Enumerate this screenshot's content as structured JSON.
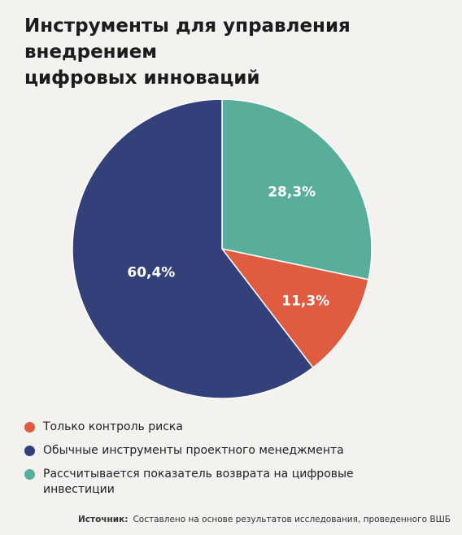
{
  "chart_data": {
    "type": "pie",
    "title_lines": [
      "Инструменты для управления внедрением",
      "цифровых инноваций"
    ],
    "slices": [
      {
        "label": "Рассчитывается показатель возврата на цифровые инвестиции",
        "value": 28.3,
        "display": "28,3%",
        "color": "#58ae9b"
      },
      {
        "label": "Только контроль риска",
        "value": 11.3,
        "display": "11,3%",
        "color": "#e05c40"
      },
      {
        "label": "Обычные инструменты проектного менеджмента",
        "value": 60.4,
        "display": "60,4%",
        "color": "#33407a"
      }
    ],
    "start": "12 o'clock",
    "direction": "clockwise"
  },
  "legend": [
    {
      "label": "Только контроль риска",
      "color": "#e05c40"
    },
    {
      "label": "Обычные инструменты проектного менеджмента",
      "color": "#33407a"
    },
    {
      "label": "Рассчитывается показатель возврата на цифровые инвестиции",
      "color": "#58ae9b"
    }
  ],
  "source": {
    "prefix": "Источник:",
    "text": "Составлено на основе результатов исследования, проведенного ВШБ"
  }
}
